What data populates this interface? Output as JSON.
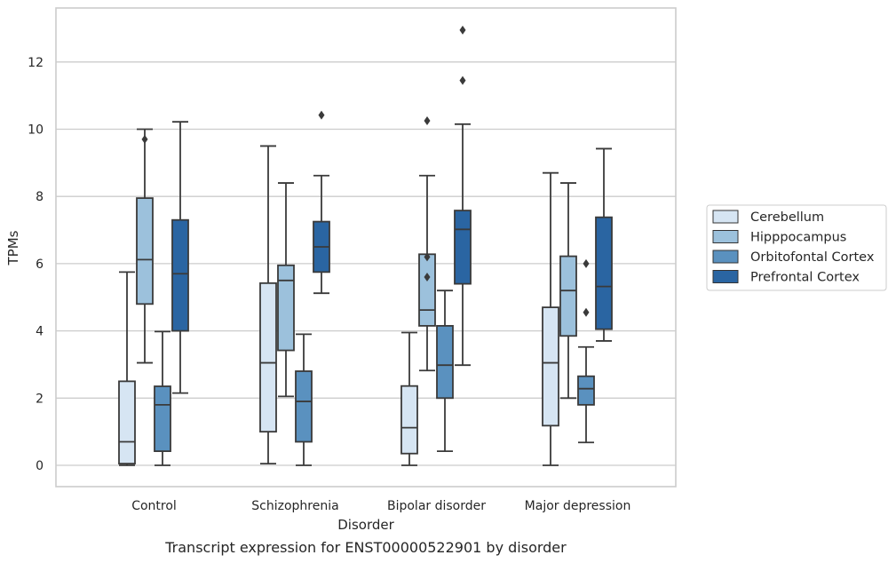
{
  "chart_data": {
    "type": "boxplot",
    "title": "",
    "caption": "Transcript expression for ENST00000522901 by disorder",
    "xlabel": "Disorder",
    "ylabel": "TPMs",
    "ylim": [
      -0.62,
      13.6
    ],
    "yticks": [
      0,
      2,
      4,
      6,
      8,
      10,
      12
    ],
    "grid": "horizontal",
    "legend_position": "right",
    "categories": [
      "Control",
      "Schizophrenia",
      "Bipolar disorder",
      "Major depression"
    ],
    "series": [
      {
        "name": "Cerebellum",
        "color": "#d6e5f3",
        "boxes": [
          {
            "whislo": 0.0,
            "q1": 0.05,
            "med": 0.7,
            "q3": 2.5,
            "whishi": 5.75,
            "fliers": []
          },
          {
            "whislo": 0.05,
            "q1": 1.0,
            "med": 3.05,
            "q3": 5.42,
            "whishi": 9.5,
            "fliers": []
          },
          {
            "whislo": 0.0,
            "q1": 0.35,
            "med": 1.12,
            "q3": 2.36,
            "whishi": 3.95,
            "fliers": []
          },
          {
            "whislo": 0.0,
            "q1": 1.18,
            "med": 3.05,
            "q3": 4.7,
            "whishi": 8.7,
            "fliers": []
          }
        ]
      },
      {
        "name": "Hipppocampus",
        "color": "#9cc1dc",
        "boxes": [
          {
            "whislo": 3.05,
            "q1": 4.8,
            "med": 6.12,
            "q3": 7.95,
            "whishi": 10.0,
            "fliers": [
              9.7
            ]
          },
          {
            "whislo": 2.05,
            "q1": 3.42,
            "med": 5.5,
            "q3": 5.95,
            "whishi": 8.4,
            "fliers": []
          },
          {
            "whislo": 2.82,
            "q1": 4.15,
            "med": 4.62,
            "q3": 6.28,
            "whishi": 8.62,
            "fliers": [
              5.6,
              6.2,
              10.25
            ]
          },
          {
            "whislo": 2.0,
            "q1": 3.85,
            "med": 5.2,
            "q3": 6.22,
            "whishi": 8.4,
            "fliers": []
          }
        ]
      },
      {
        "name": "Orbitofontal Cortex",
        "color": "#5a91bf",
        "boxes": [
          {
            "whislo": 0.0,
            "q1": 0.42,
            "med": 1.8,
            "q3": 2.35,
            "whishi": 3.98,
            "fliers": []
          },
          {
            "whislo": 0.0,
            "q1": 0.7,
            "med": 1.9,
            "q3": 2.8,
            "whishi": 3.9,
            "fliers": []
          },
          {
            "whislo": 0.42,
            "q1": 2.0,
            "med": 2.98,
            "q3": 4.15,
            "whishi": 5.2,
            "fliers": []
          },
          {
            "whislo": 0.68,
            "q1": 1.8,
            "med": 2.28,
            "q3": 2.65,
            "whishi": 3.52,
            "fliers": [
              4.55,
              6.0
            ]
          }
        ]
      },
      {
        "name": "Prefrontal Cortex",
        "color": "#2a65a2",
        "boxes": [
          {
            "whislo": 2.15,
            "q1": 4.0,
            "med": 5.7,
            "q3": 7.3,
            "whishi": 10.22,
            "fliers": []
          },
          {
            "whislo": 5.12,
            "q1": 5.75,
            "med": 6.5,
            "q3": 7.25,
            "whishi": 8.62,
            "fliers": [
              10.42
            ]
          },
          {
            "whislo": 2.98,
            "q1": 5.4,
            "med": 7.02,
            "q3": 7.58,
            "whishi": 10.15,
            "fliers": [
              11.45,
              12.95
            ]
          },
          {
            "whislo": 3.7,
            "q1": 4.05,
            "med": 5.32,
            "q3": 7.38,
            "whishi": 9.42,
            "fliers": []
          }
        ]
      }
    ]
  }
}
